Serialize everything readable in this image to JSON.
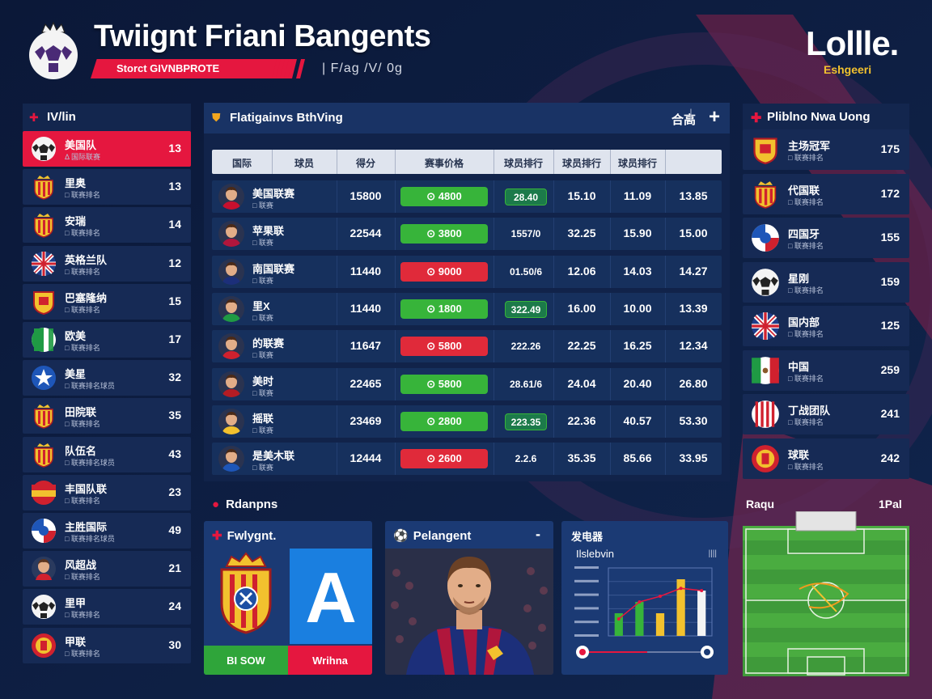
{
  "header": {
    "title": "Twiignt Friani Bangents",
    "subtitle": "Storct GIVNBPROTE",
    "subnav": "| F/ag  /V/ 0g",
    "brand_right": "Lollle.",
    "brand_right_sub": "Eshgeeri"
  },
  "left_panel": {
    "title": "IV/lin",
    "teams": [
      {
        "name": "美国队",
        "sub": "Δ 国际联赛",
        "value": "13",
        "crest": "soccer-ball-icon",
        "active": true
      },
      {
        "name": "里奥",
        "sub": "□ 联赛排名",
        "value": "13",
        "crest": "spain-crest-icon"
      },
      {
        "name": "安瑞",
        "sub": "□ 联赛排名",
        "value": "14",
        "crest": "spain-crest-icon"
      },
      {
        "name": "英格兰队",
        "sub": "□ 联赛排名",
        "value": "12",
        "crest": "england-crest-icon"
      },
      {
        "name": "巴塞隆纳",
        "sub": "□ 联赛排名",
        "value": "15",
        "crest": "gold-crest-icon"
      },
      {
        "name": "欧美",
        "sub": "□ 联赛排名",
        "value": "17",
        "crest": "italy-crest-icon"
      },
      {
        "name": "美星",
        "sub": "□ 联赛排名球员",
        "value": "32",
        "crest": "star-crest-icon"
      },
      {
        "name": "田院联",
        "sub": "□ 联赛排名",
        "value": "35",
        "crest": "spain-crest-icon"
      },
      {
        "name": "队伍名",
        "sub": "□ 联赛排名球员",
        "value": "43",
        "crest": "spain-crest-icon"
      },
      {
        "name": "丰国队联",
        "sub": "□ 联赛排名",
        "value": "23",
        "crest": "germany-crest-icon"
      },
      {
        "name": "主胜国际",
        "sub": "□ 联赛排名球员",
        "value": "49",
        "crest": "france-crest-icon"
      },
      {
        "name": "风超战",
        "sub": "□ 联赛排名",
        "value": "21",
        "crest": "player-avatar-icon"
      },
      {
        "name": "里甲",
        "sub": "□ 联赛排名",
        "value": "24",
        "crest": "soccer-ball-icon"
      },
      {
        "name": "甲联",
        "sub": "□ 联赛排名",
        "value": "30",
        "crest": "red-crest-icon"
      }
    ]
  },
  "main_table": {
    "title": "Flatigainvs BthVing",
    "action": "合高",
    "plus": "+",
    "columns": [
      "国际",
      "球员",
      "得分",
      "赛事价格",
      "球员排行",
      "球员排行",
      "球员排行"
    ],
    "rows": [
      {
        "name": "美国联赛",
        "sub": "□ 联赛",
        "score": "15800",
        "pill": "⊙ 4800",
        "pill_color": "green",
        "tag": "28.40",
        "tag_style": "green",
        "c1": "15.10",
        "c2": "11.09",
        "c3": "13.85"
      },
      {
        "name": "苹果联",
        "sub": "□ 联赛",
        "score": "22544",
        "pill": "⊙ 3800",
        "pill_color": "green",
        "tag": "1557/0",
        "tag_style": "plain",
        "c1": "32.25",
        "c2": "15.90",
        "c3": "15.00"
      },
      {
        "name": "南国联赛",
        "sub": "□ 联赛",
        "score": "11440",
        "pill": "⊙ 9000",
        "pill_color": "red",
        "tag": "01.50/6",
        "tag_style": "plain",
        "c1": "12.06",
        "c2": "14.03",
        "c3": "14.27"
      },
      {
        "name": "里X",
        "sub": "□ 联赛",
        "score": "11440",
        "pill": "⊙ 1800",
        "pill_color": "green",
        "tag": "322.49",
        "tag_style": "green",
        "c1": "16.00",
        "c2": "10.00",
        "c3": "13.39"
      },
      {
        "name": "的联赛",
        "sub": "□ 联赛",
        "score": "11647",
        "pill": "⊙ 5800",
        "pill_color": "red",
        "tag": "222.26",
        "tag_style": "plain",
        "c1": "22.25",
        "c2": "16.25",
        "c3": "12.34"
      },
      {
        "name": "美时",
        "sub": "□ 联赛",
        "score": "22465",
        "pill": "⊙ 5800",
        "pill_color": "green",
        "tag": "28.61/6",
        "tag_style": "plain",
        "c1": "24.04",
        "c2": "20.40",
        "c3": "26.80"
      },
      {
        "name": "摇联",
        "sub": "□ 联赛",
        "score": "23469",
        "pill": "⊙ 2800",
        "pill_color": "green",
        "tag": "223.35",
        "tag_style": "green",
        "c1": "22.36",
        "c2": "40.57",
        "c3": "53.30"
      },
      {
        "name": "是美木联",
        "sub": "□ 联赛",
        "score": "12444",
        "pill": "⊙ 2600",
        "pill_color": "red",
        "tag": "2.2.6",
        "tag_style": "plain",
        "c1": "35.35",
        "c2": "85.66",
        "c3": "33.95"
      }
    ]
  },
  "right_panel": {
    "title": "Pliblno Nwa Uong",
    "teams": [
      {
        "name": "主场冠军",
        "sub": "□ 联赛排名",
        "value": "175",
        "crest": "gold-crest-icon"
      },
      {
        "name": "代国联",
        "sub": "□ 联赛排名",
        "value": "172",
        "crest": "spain-crest-icon"
      },
      {
        "name": "四国牙",
        "sub": "□ 联赛排名",
        "value": "155",
        "crest": "france-crest-icon"
      },
      {
        "name": "星刚",
        "sub": "□ 联赛排名",
        "value": "159",
        "crest": "soccer-ball-icon"
      },
      {
        "name": "国内部",
        "sub": "□ 联赛排名",
        "value": "125",
        "crest": "england-crest-icon"
      },
      {
        "name": "中国",
        "sub": "□ 联赛排名",
        "value": "259",
        "crest": "mexico-crest-icon"
      },
      {
        "name": "丁战团队",
        "sub": "□ 联赛排名",
        "value": "241",
        "crest": "striped-crest-icon"
      },
      {
        "name": "球联",
        "sub": "□ 联赛排名",
        "value": "242",
        "crest": "red-crest-icon"
      }
    ]
  },
  "bottom": {
    "section_label": "Rdanpns",
    "card1": {
      "title": "Fwlygnt.",
      "left_label": "BI SOW",
      "right_label": "Wrihna",
      "big_letter": "A"
    },
    "card2": {
      "title": "Pelangent",
      "menu": "-"
    },
    "card3": {
      "title": "发电器",
      "chart_title": "Ilslebvin",
      "toggle": "||||"
    },
    "pitch": {
      "title": "Raqu",
      "right_label": "1Pal"
    }
  },
  "chart_data": {
    "type": "bar",
    "title": "Ilslebvin",
    "categories": [
      "1",
      "2",
      "3",
      "4",
      "5"
    ],
    "series": [
      {
        "values": [
          2,
          3,
          2,
          5,
          4
        ]
      }
    ],
    "line": [
      1.5,
      3,
      3.5,
      4.2,
      4
    ],
    "ylim": [
      0,
      6
    ],
    "grid": true,
    "legend": "none"
  },
  "colors": {
    "accent_red": "#e5173f",
    "accent_green": "#37b43a",
    "panel": "#13264e",
    "bg": "#0c1c3e"
  }
}
